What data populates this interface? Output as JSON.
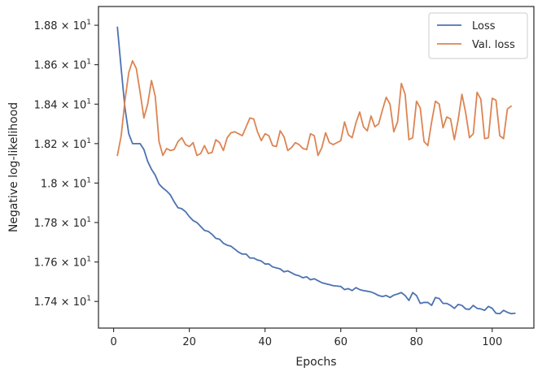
{
  "chart_data": {
    "type": "line",
    "xlabel": "Epochs",
    "ylabel": "Negative log-likelihood",
    "xlim": [
      -4,
      111
    ],
    "ylim": [
      17.265,
      18.895
    ],
    "x_ticks": [
      0,
      20,
      40,
      60,
      80,
      100
    ],
    "y_ticks": [
      {
        "value": 17.4,
        "mantissa": "1.74"
      },
      {
        "value": 17.6,
        "mantissa": "1.76"
      },
      {
        "value": 17.8,
        "mantissa": "1.78"
      },
      {
        "value": 18.0,
        "mantissa": "1.8"
      },
      {
        "value": 18.2,
        "mantissa": "1.82"
      },
      {
        "value": 18.4,
        "mantissa": "1.84"
      },
      {
        "value": 18.6,
        "mantissa": "1.86"
      },
      {
        "value": 18.8,
        "mantissa": "1.88"
      }
    ],
    "y_tick_suffix": "× 10",
    "y_tick_exponent": "1",
    "grid": false,
    "legend_position": "top-right",
    "series": [
      {
        "name": "Loss",
        "color": "#4c72b0",
        "x_start": 1,
        "values": [
          18.79,
          18.58,
          18.38,
          18.25,
          18.2,
          18.2,
          18.2,
          18.17,
          18.11,
          18.07,
          18.04,
          17.995,
          17.975,
          17.96,
          17.94,
          17.905,
          17.875,
          17.87,
          17.855,
          17.83,
          17.81,
          17.8,
          17.78,
          17.76,
          17.755,
          17.74,
          17.72,
          17.715,
          17.695,
          17.685,
          17.68,
          17.665,
          17.65,
          17.64,
          17.64,
          17.62,
          17.62,
          17.61,
          17.605,
          17.59,
          17.59,
          17.575,
          17.57,
          17.565,
          17.55,
          17.555,
          17.545,
          17.535,
          17.53,
          17.52,
          17.525,
          17.51,
          17.515,
          17.505,
          17.495,
          17.49,
          17.485,
          17.48,
          17.478,
          17.476,
          17.46,
          17.465,
          17.455,
          17.47,
          17.46,
          17.455,
          17.452,
          17.448,
          17.44,
          17.43,
          17.425,
          17.43,
          17.42,
          17.432,
          17.438,
          17.445,
          17.43,
          17.405,
          17.445,
          17.43,
          17.39,
          17.395,
          17.395,
          17.38,
          17.42,
          17.415,
          17.39,
          17.39,
          17.38,
          17.365,
          17.385,
          17.38,
          17.362,
          17.36,
          17.38,
          17.365,
          17.362,
          17.355,
          17.375,
          17.365,
          17.34,
          17.338,
          17.355,
          17.345,
          17.338,
          17.34
        ]
      },
      {
        "name": "Val. loss",
        "color": "#dd8452",
        "x_start": 1,
        "values": [
          18.14,
          18.24,
          18.42,
          18.56,
          18.62,
          18.58,
          18.46,
          18.33,
          18.4,
          18.52,
          18.44,
          18.21,
          18.14,
          18.175,
          18.165,
          18.17,
          18.21,
          18.23,
          18.195,
          18.185,
          18.205,
          18.14,
          18.15,
          18.19,
          18.15,
          18.155,
          18.22,
          18.205,
          18.165,
          18.23,
          18.255,
          18.26,
          18.25,
          18.24,
          18.285,
          18.33,
          18.325,
          18.26,
          18.215,
          18.25,
          18.24,
          18.19,
          18.185,
          18.265,
          18.235,
          18.165,
          18.18,
          18.205,
          18.195,
          18.175,
          18.17,
          18.25,
          18.24,
          18.14,
          18.18,
          18.255,
          18.205,
          18.195,
          18.205,
          18.215,
          18.31,
          18.245,
          18.23,
          18.305,
          18.36,
          18.285,
          18.265,
          18.34,
          18.285,
          18.3,
          18.37,
          18.435,
          18.4,
          18.26,
          18.31,
          18.505,
          18.45,
          18.22,
          18.23,
          18.415,
          18.38,
          18.21,
          18.19,
          18.31,
          18.415,
          18.4,
          18.28,
          18.335,
          18.325,
          18.22,
          18.32,
          18.45,
          18.355,
          18.23,
          18.25,
          18.46,
          18.425,
          18.225,
          18.23,
          18.43,
          18.42,
          18.24,
          18.225,
          18.375,
          18.39
        ]
      }
    ]
  }
}
